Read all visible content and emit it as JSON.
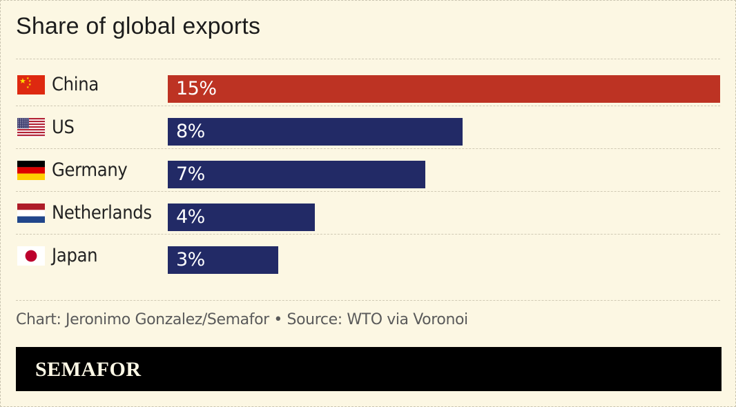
{
  "chart_data": {
    "type": "bar",
    "orientation": "horizontal",
    "title": "Share of global exports",
    "categories": [
      "China",
      "US",
      "Germany",
      "Netherlands",
      "Japan"
    ],
    "values": [
      15,
      8,
      7,
      4,
      3
    ],
    "value_labels": [
      "15%",
      "8%",
      "7%",
      "4%",
      "3%"
    ],
    "unit": "%",
    "colors": [
      "#bd3323",
      "#222a66",
      "#222a66",
      "#222a66",
      "#222a66"
    ],
    "flags": [
      "china-flag-icon",
      "us-flag-icon",
      "germany-flag-icon",
      "netherlands-flag-icon",
      "japan-flag-icon"
    ],
    "xlim": [
      0,
      15
    ],
    "grid": false,
    "legend": "none"
  },
  "credit": "Chart: Jeronimo Gonzalez/Semafor • Source: WTO via Voronoi",
  "brand": "SEMAFOR",
  "colors": {
    "background": "#fcf7e3",
    "highlight": "#bd3323",
    "bar": "#222a66",
    "brand_bar": "#000000"
  }
}
